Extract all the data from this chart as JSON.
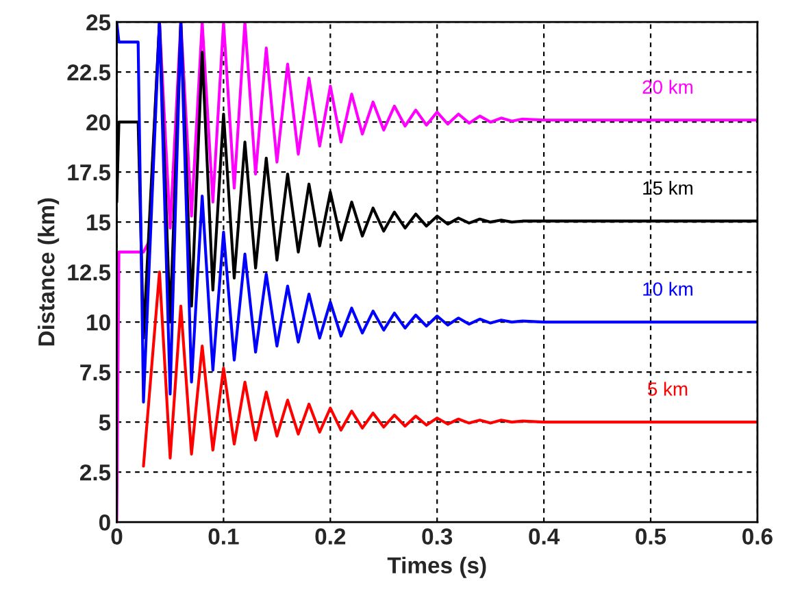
{
  "chart_data": {
    "type": "line",
    "xlabel": "Times (s)",
    "ylabel": "Distance (km)",
    "xlim": [
      0,
      0.6
    ],
    "xticks": [
      0,
      0.1,
      0.2,
      0.3,
      0.4,
      0.5,
      0.6
    ],
    "ylim": [
      0,
      25
    ],
    "yticks": [
      0,
      2.5,
      5,
      7.5,
      10,
      12.5,
      15,
      17.5,
      20,
      22.5,
      25
    ],
    "grid": true,
    "line_style": "solid",
    "marker": "none",
    "series": [
      {
        "name": "20 km",
        "color": "#ff00ff",
        "x": [
          0,
          0.002,
          0.025,
          0.03,
          0.04,
          0.05,
          0.06,
          0.07,
          0.08,
          0.09,
          0.1,
          0.11,
          0.12,
          0.13,
          0.14,
          0.15,
          0.16,
          0.17,
          0.18,
          0.19,
          0.2,
          0.21,
          0.22,
          0.23,
          0.24,
          0.25,
          0.26,
          0.27,
          0.28,
          0.29,
          0.3,
          0.31,
          0.32,
          0.33,
          0.34,
          0.35,
          0.36,
          0.37,
          0.38,
          0.4,
          0.6
        ],
        "values": [
          0,
          13.5,
          13.5,
          14,
          25,
          14.7,
          25,
          15.3,
          25,
          16.0,
          25,
          16.7,
          25,
          17.4,
          23.7,
          18.0,
          22.9,
          18.4,
          22.2,
          18.8,
          21.8,
          19.0,
          21.4,
          19.4,
          21.0,
          19.6,
          20.8,
          19.8,
          20.6,
          19.85,
          20.5,
          19.9,
          20.4,
          19.95,
          20.3,
          20.0,
          20.2,
          20.05,
          20.15,
          20.1,
          20.1
        ]
      },
      {
        "name": "15 km",
        "color": "#000000",
        "x": [
          0,
          0.002,
          0.02,
          0.025,
          0.04,
          0.05,
          0.06,
          0.07,
          0.08,
          0.09,
          0.1,
          0.11,
          0.12,
          0.13,
          0.14,
          0.15,
          0.16,
          0.17,
          0.18,
          0.19,
          0.2,
          0.21,
          0.22,
          0.23,
          0.24,
          0.25,
          0.26,
          0.27,
          0.28,
          0.29,
          0.3,
          0.31,
          0.32,
          0.33,
          0.34,
          0.35,
          0.36,
          0.37,
          0.38,
          0.4,
          0.6
        ],
        "values": [
          16,
          20,
          20,
          9.2,
          25,
          10.0,
          25,
          10.8,
          23.5,
          11.6,
          20.4,
          12.2,
          19.0,
          12.7,
          18.2,
          13.1,
          17.4,
          13.5,
          16.9,
          13.8,
          16.5,
          14.1,
          16.0,
          14.3,
          15.7,
          14.55,
          15.5,
          14.7,
          15.4,
          14.8,
          15.3,
          14.9,
          15.2,
          14.95,
          15.15,
          15.0,
          15.1,
          15.0,
          15.05,
          15.05,
          15.05
        ]
      },
      {
        "name": "10 km",
        "color": "#0000ff",
        "x": [
          0,
          0.002,
          0.02,
          0.025,
          0.04,
          0.05,
          0.06,
          0.07,
          0.08,
          0.09,
          0.1,
          0.11,
          0.12,
          0.13,
          0.14,
          0.15,
          0.16,
          0.17,
          0.18,
          0.19,
          0.2,
          0.21,
          0.22,
          0.23,
          0.24,
          0.25,
          0.26,
          0.27,
          0.28,
          0.29,
          0.3,
          0.31,
          0.32,
          0.33,
          0.34,
          0.35,
          0.36,
          0.37,
          0.38,
          0.4,
          0.6
        ],
        "values": [
          25,
          24,
          24,
          6.0,
          25,
          6.4,
          25,
          7.0,
          16.3,
          7.6,
          14.5,
          8.1,
          13.4,
          8.5,
          12.4,
          8.8,
          11.8,
          9.0,
          11.4,
          9.2,
          11.0,
          9.3,
          10.7,
          9.45,
          10.55,
          9.6,
          10.45,
          9.7,
          10.35,
          9.8,
          10.3,
          9.85,
          10.2,
          9.9,
          10.15,
          9.95,
          10.1,
          10.0,
          10.05,
          10.0,
          10.0
        ]
      },
      {
        "name": "5 km",
        "color": "#ff0000",
        "x": [
          0.025,
          0.04,
          0.05,
          0.06,
          0.07,
          0.08,
          0.09,
          0.1,
          0.11,
          0.12,
          0.13,
          0.14,
          0.15,
          0.16,
          0.17,
          0.18,
          0.19,
          0.2,
          0.21,
          0.22,
          0.23,
          0.24,
          0.25,
          0.26,
          0.27,
          0.28,
          0.29,
          0.3,
          0.31,
          0.32,
          0.33,
          0.34,
          0.35,
          0.36,
          0.37,
          0.38,
          0.4,
          0.6
        ],
        "values": [
          2.8,
          12.5,
          3.2,
          10.8,
          3.4,
          8.8,
          3.6,
          7.7,
          3.9,
          7.0,
          4.1,
          6.5,
          4.3,
          6.1,
          4.4,
          5.9,
          4.5,
          5.7,
          4.6,
          5.55,
          4.7,
          5.45,
          4.75,
          5.35,
          4.8,
          5.3,
          4.85,
          5.2,
          4.9,
          5.15,
          4.95,
          5.1,
          4.95,
          5.1,
          5.0,
          5.05,
          5.0,
          5.0
        ]
      }
    ]
  }
}
